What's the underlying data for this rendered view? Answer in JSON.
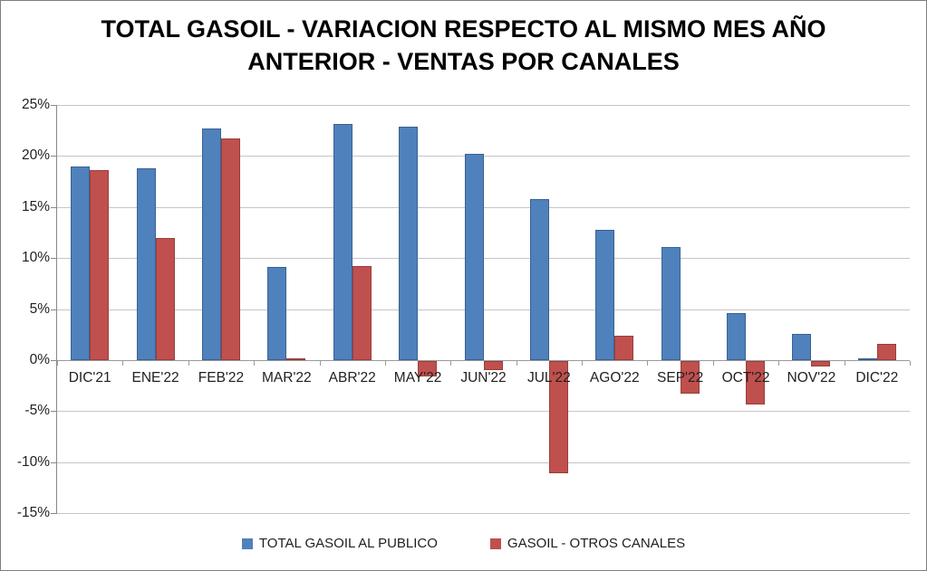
{
  "title": {
    "line1": "TOTAL GASOIL - VARIACION RESPECTO AL MISMO MES AÑO",
    "line2": "ANTERIOR - VENTAS POR CANALES"
  },
  "chart_data": {
    "type": "bar",
    "title": "TOTAL GASOIL - VARIACION RESPECTO AL MISMO MES AÑO ANTERIOR - VENTAS POR CANALES",
    "categories": [
      "DIC'21",
      "ENE'22",
      "FEB'22",
      "MAR'22",
      "ABR'22",
      "MAY'22",
      "JUN'22",
      "JUL'22",
      "AGO'22",
      "SEP'22",
      "OCT'22",
      "NOV'22",
      "DIC'22"
    ],
    "series": [
      {
        "name": "TOTAL GASOIL AL PUBLICO",
        "color": "#4F81BD",
        "border_color": "#3A6191",
        "values": [
          19.0,
          18.8,
          22.7,
          9.1,
          23.1,
          22.9,
          20.2,
          15.8,
          12.8,
          11.1,
          4.6,
          2.6,
          0.2
        ]
      },
      {
        "name": "GASOIL - OTROS CANALES",
        "color": "#C0504D",
        "border_color": "#96403D",
        "values": [
          18.6,
          12.0,
          21.7,
          0.2,
          9.2,
          -1.5,
          -0.9,
          -11.0,
          2.4,
          -3.2,
          -4.3,
          -0.5,
          1.6
        ]
      }
    ],
    "ylim": [
      -15,
      25
    ],
    "ytick_step": 5,
    "ytick_format": "percent",
    "grid": true,
    "legend_position": "bottom",
    "xlabel": "",
    "ylabel": ""
  }
}
